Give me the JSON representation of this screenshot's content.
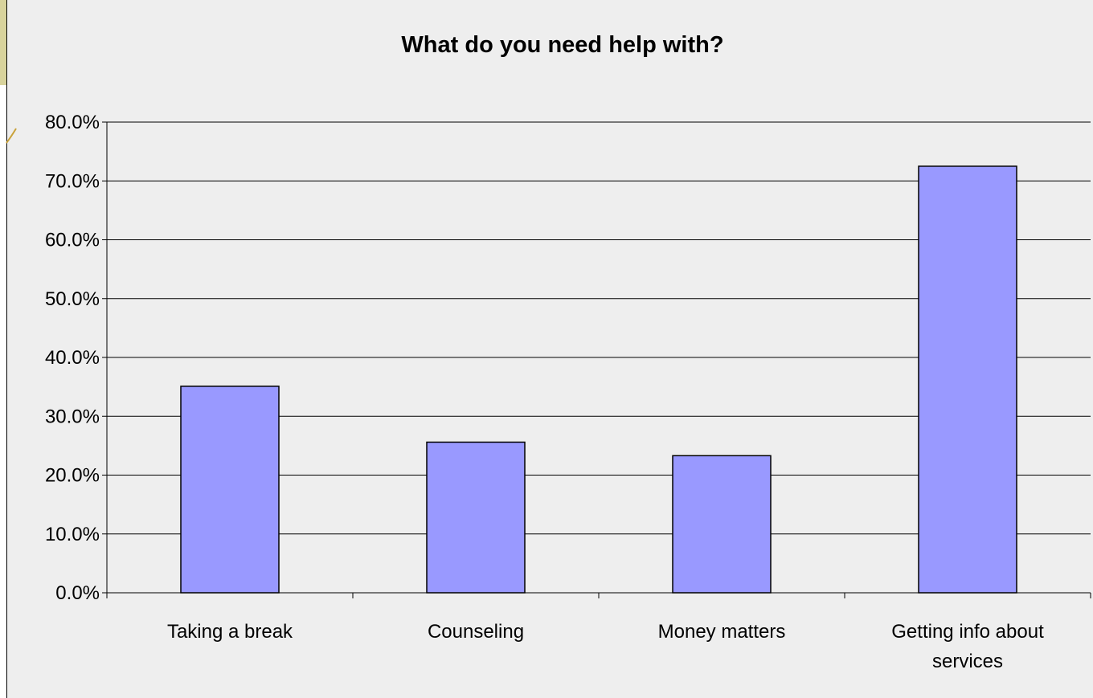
{
  "chart_data": {
    "type": "bar",
    "title": "What do you need help with?",
    "xlabel": "",
    "ylabel": "",
    "categories": [
      "Taking a break",
      "Counseling",
      "Money matters",
      "Getting info about services"
    ],
    "values": [
      35.1,
      25.6,
      23.3,
      72.5
    ],
    "ylim": [
      0,
      80
    ],
    "yticks": [
      0,
      10,
      20,
      30,
      40,
      50,
      60,
      70,
      80
    ],
    "tick_format": "percent_1dp",
    "grid": true,
    "legend": "none",
    "colors": {
      "bar_fill": "#9999ff",
      "bar_stroke": "#000000",
      "plot_background": "#eeeeee",
      "gridline": "#000000",
      "banner": "#d8d39c",
      "accent_curve": "#c9a23a"
    }
  }
}
